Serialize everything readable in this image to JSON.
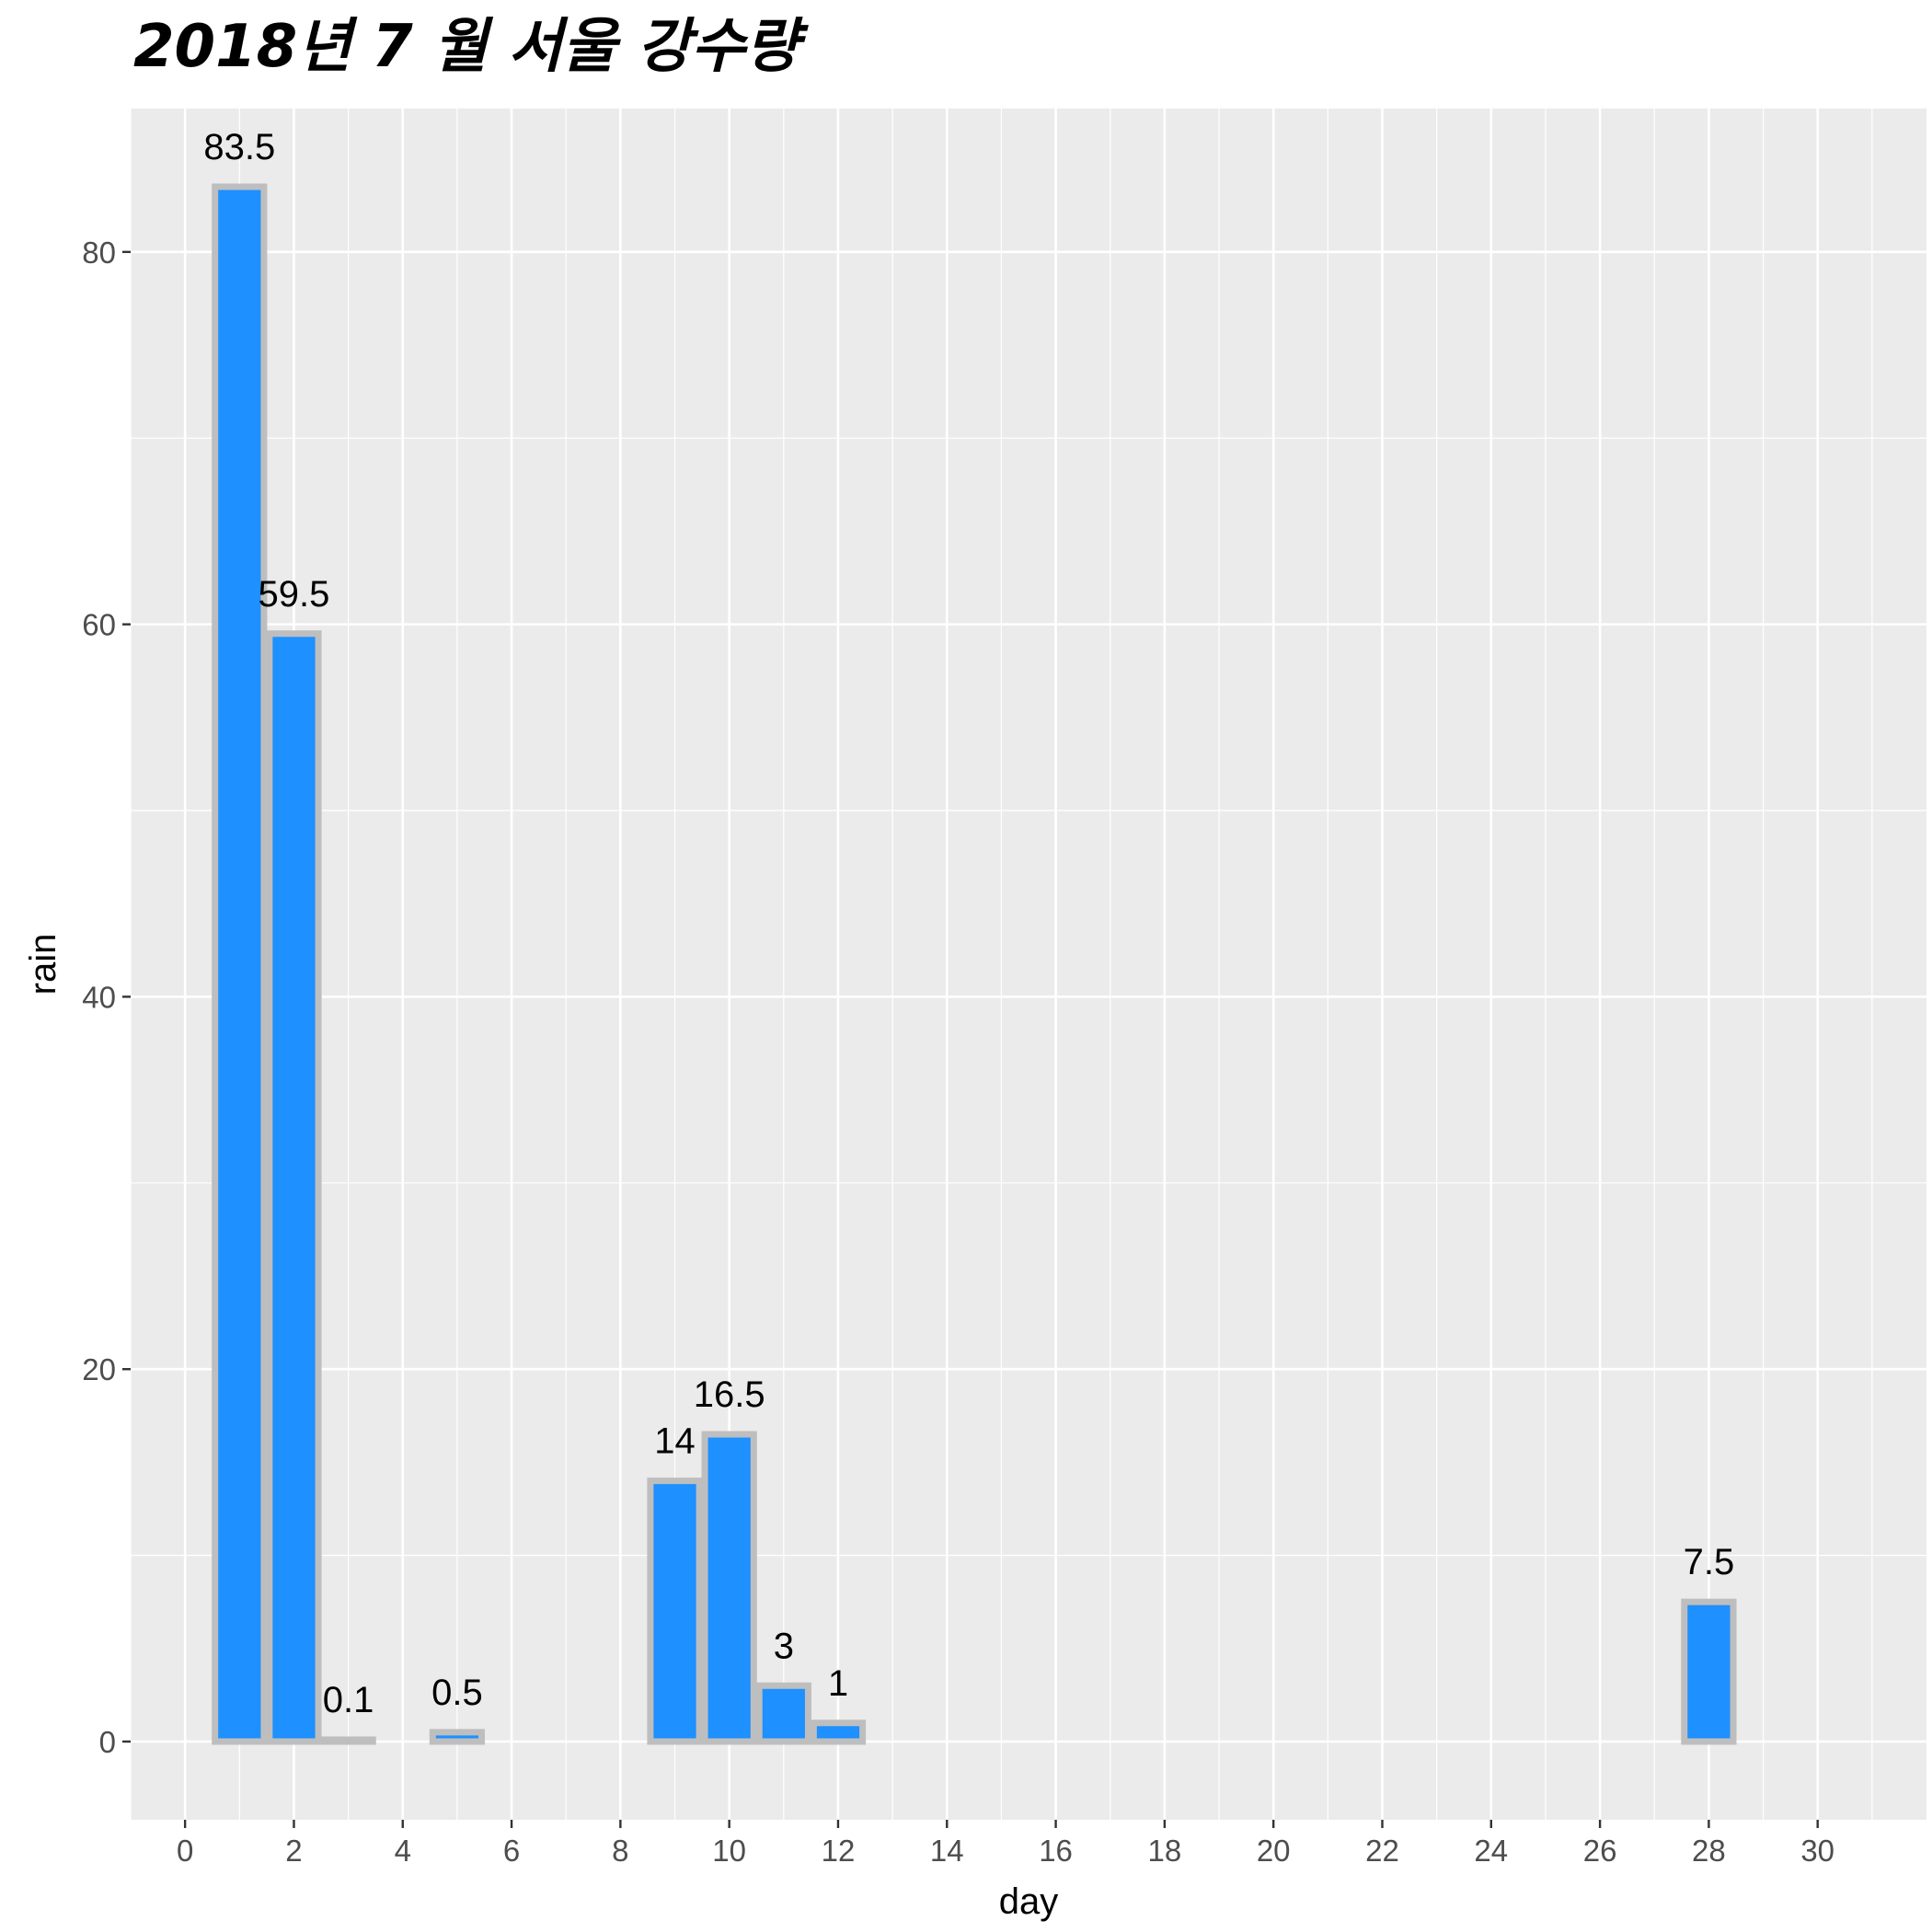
{
  "chart_data": {
    "type": "bar",
    "title": "2018년 7 월 서울 강수량",
    "xlabel": "day",
    "ylabel": "rain",
    "x": [
      1,
      2,
      3,
      5,
      9,
      10,
      11,
      12,
      28
    ],
    "values": [
      83.5,
      59.5,
      0.1,
      0.5,
      14,
      16.5,
      3,
      1,
      7.5
    ],
    "data_labels": [
      "83.5",
      "59.5",
      "0.1",
      "0.5",
      "14",
      "16.5",
      "3",
      "1",
      "7.5"
    ],
    "xlim": [
      -1,
      32
    ],
    "ylim": [
      -4.2,
      87.7
    ],
    "x_ticks": [
      0,
      2,
      4,
      6,
      8,
      10,
      12,
      14,
      16,
      18,
      20,
      22,
      24,
      26,
      28,
      30
    ],
    "x_tick_labels": [
      "0",
      "2",
      "4",
      "6",
      "8",
      "10",
      "12",
      "14",
      "16",
      "18",
      "20",
      "22",
      "24",
      "26",
      "28",
      "30"
    ],
    "y_ticks": [
      0,
      20,
      40,
      60,
      80
    ],
    "y_tick_labels": [
      "0",
      "20",
      "40",
      "60",
      "80"
    ],
    "grid": true,
    "legend": "none",
    "colors": {
      "bar_fill": "#1E90FF",
      "bar_outline": "#BEBEBE",
      "panel_background": "#EBEBEB",
      "grid": "#FFFFFF"
    }
  }
}
